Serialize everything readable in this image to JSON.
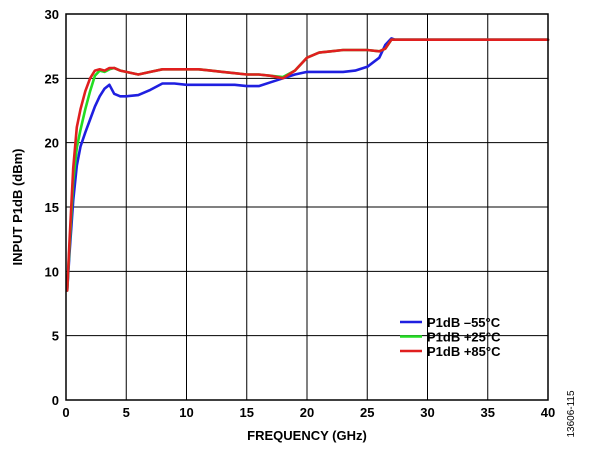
{
  "chart_data": {
    "type": "line",
    "xlabel": "FREQUENCY (GHz)",
    "ylabel": "INPUT P1dB (dBm)",
    "xlim": [
      0,
      40
    ],
    "ylim": [
      0,
      30
    ],
    "xticks": [
      0,
      5,
      10,
      15,
      20,
      25,
      30,
      35,
      40
    ],
    "yticks": [
      0,
      5,
      10,
      15,
      20,
      25,
      30
    ],
    "grid": true,
    "legend_position": "bottom-right",
    "series": [
      {
        "name": "P1dB –55°C",
        "color": "#1f1fe0",
        "x": [
          0.1,
          0.3,
          0.6,
          0.9,
          1.2,
          1.6,
          2.0,
          2.4,
          2.8,
          3.2,
          3.6,
          4.0,
          4.5,
          5,
          6,
          7,
          8,
          9,
          10,
          11,
          12,
          13,
          14,
          15,
          16,
          17,
          18,
          19,
          20,
          21,
          22,
          23,
          24,
          25,
          26,
          26.5,
          27,
          27.3,
          28,
          30,
          35,
          40
        ],
        "y": [
          8.5,
          11.5,
          15.5,
          18.2,
          19.7,
          20.8,
          21.8,
          22.8,
          23.6,
          24.2,
          24.5,
          23.8,
          23.6,
          23.6,
          23.7,
          24.1,
          24.6,
          24.6,
          24.5,
          24.5,
          24.5,
          24.5,
          24.5,
          24.4,
          24.4,
          24.7,
          25.0,
          25.3,
          25.5,
          25.5,
          25.5,
          25.5,
          25.6,
          25.9,
          26.6,
          27.6,
          28.1,
          28.0,
          28.0,
          28.0,
          28.0,
          28.0
        ]
      },
      {
        "name": "P1dB +25°C",
        "color": "#22dd22",
        "x": [
          0.1,
          0.3,
          0.6,
          0.9,
          1.2,
          1.6,
          2.0,
          2.4,
          2.8,
          3.2,
          3.6,
          4.0,
          4.5,
          5,
          6,
          7,
          8,
          9,
          10,
          11,
          12,
          13,
          14,
          15,
          16,
          17,
          18,
          19,
          20,
          21,
          22,
          23,
          24,
          25,
          26,
          26.5,
          27,
          27.3,
          28,
          30,
          35,
          40
        ],
        "y": [
          8.5,
          12.0,
          17.0,
          19.6,
          21.0,
          22.6,
          24.0,
          25.2,
          25.6,
          25.5,
          25.7,
          25.8,
          25.6,
          25.5,
          25.3,
          25.5,
          25.7,
          25.7,
          25.7,
          25.7,
          25.6,
          25.5,
          25.4,
          25.3,
          25.3,
          25.2,
          25.1,
          25.6,
          26.6,
          27.0,
          27.1,
          27.2,
          27.2,
          27.2,
          27.1,
          27.3,
          28.0,
          28.0,
          28.0,
          28.0,
          28.0,
          28.0
        ]
      },
      {
        "name": "P1dB +85°C",
        "color": "#e01f1f",
        "x": [
          0.1,
          0.3,
          0.6,
          0.9,
          1.2,
          1.6,
          2.0,
          2.4,
          2.8,
          3.2,
          3.6,
          4.0,
          4.5,
          5,
          6,
          7,
          8,
          9,
          10,
          11,
          12,
          13,
          14,
          15,
          16,
          17,
          18,
          19,
          20,
          21,
          22,
          23,
          24,
          25,
          26,
          26.5,
          27,
          27.3,
          28,
          30,
          35,
          40
        ],
        "y": [
          8.5,
          12.5,
          18.0,
          21.2,
          22.6,
          24.0,
          25.0,
          25.6,
          25.7,
          25.6,
          25.8,
          25.8,
          25.6,
          25.5,
          25.3,
          25.5,
          25.7,
          25.7,
          25.7,
          25.7,
          25.6,
          25.5,
          25.4,
          25.3,
          25.3,
          25.2,
          25.0,
          25.6,
          26.6,
          27.0,
          27.1,
          27.2,
          27.2,
          27.2,
          27.1,
          27.3,
          28.0,
          28.0,
          28.0,
          28.0,
          28.0,
          28.0
        ]
      }
    ]
  },
  "figure_code": "13606-115"
}
